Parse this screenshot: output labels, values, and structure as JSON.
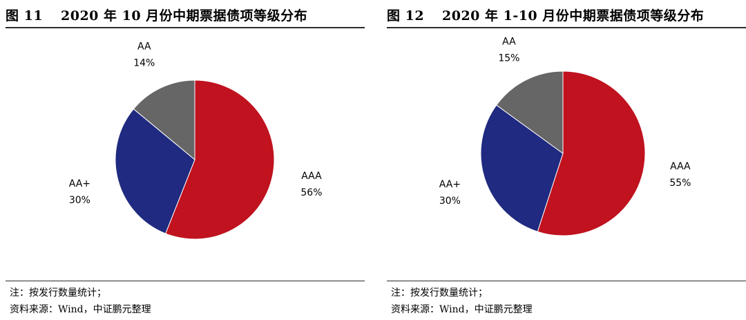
{
  "left": {
    "fig_number": "图 11",
    "title": "2020 年 10 月份中期票据债项等级分布",
    "note": "注：按发行数量统计；",
    "source": "资料来源：Wind，中证鹏元整理"
  },
  "right": {
    "fig_number": "图 12",
    "title": "2020 年 1-10 月份中期票据债项等级分布",
    "note": "注：按发行数量统计；",
    "source": "资料来源：Wind，中证鹏元整理"
  },
  "chart_data": [
    {
      "type": "pie",
      "title": "2020 年 10 月份中期票据债项等级分布",
      "categories": [
        "AAA",
        "AA+",
        "AA"
      ],
      "values": [
        56,
        30,
        14
      ],
      "labels": [
        "56%",
        "30%",
        "14%"
      ],
      "colors": [
        "#c0121f",
        "#1f2a80",
        "#666666"
      ],
      "start": "12 o'clock, clockwise"
    },
    {
      "type": "pie",
      "title": "2020 年 1-10 月份中期票据债项等级分布",
      "categories": [
        "AAA",
        "AA+",
        "AA"
      ],
      "values": [
        55,
        30,
        15
      ],
      "labels": [
        "55%",
        "30%",
        "15%"
      ],
      "colors": [
        "#c0121f",
        "#1f2a80",
        "#666666"
      ],
      "start": "12 o'clock, clockwise"
    }
  ]
}
